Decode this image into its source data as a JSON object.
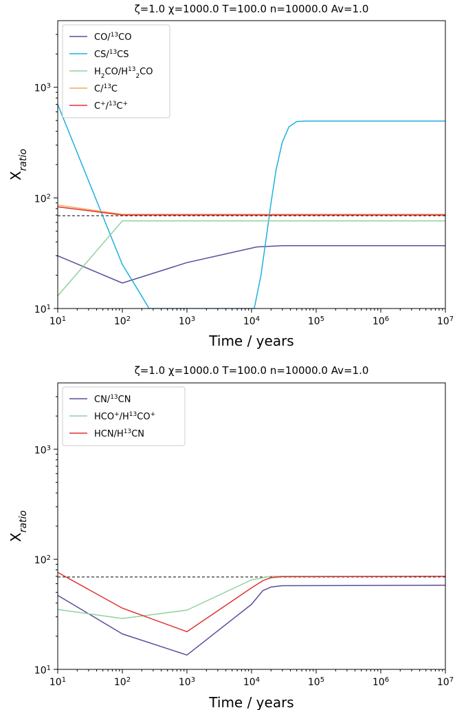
{
  "chart_data": [
    {
      "type": "line",
      "title": "ζ=1.0 χ=1000.0 T=100.0 n=10000.0  Av=1.0",
      "xlabel": "Time / years",
      "ylabel": "X_ratio",
      "xscale": "log",
      "yscale": "log",
      "xlim": [
        10,
        10000000
      ],
      "ylim": [
        10,
        4000
      ],
      "xticks": [
        {
          "base": "10",
          "exp": "1"
        },
        {
          "base": "10",
          "exp": "2"
        },
        {
          "base": "10",
          "exp": "3"
        },
        {
          "base": "10",
          "exp": "4"
        },
        {
          "base": "10",
          "exp": "5"
        },
        {
          "base": "10",
          "exp": "6"
        },
        {
          "base": "10",
          "exp": "7"
        }
      ],
      "yticks": [
        {
          "base": "10",
          "exp": "1"
        },
        {
          "base": "10",
          "exp": "2"
        },
        {
          "base": "10",
          "exp": "3"
        }
      ],
      "reference_line": {
        "y": 69,
        "style": "dashed",
        "color": "#222222"
      },
      "legend_position": "upper-left",
      "series": [
        {
          "name_parts": [
            [
              "CO/",
              ""
            ],
            [
              "13",
              "sup"
            ],
            [
              "CO",
              ""
            ]
          ],
          "color": "#5a4b9b",
          "points": [
            [
              10,
              30
            ],
            [
              100,
              17
            ],
            [
              1000,
              26
            ],
            [
              12000,
              36
            ],
            [
              30000,
              37
            ],
            [
              10000000,
              37
            ]
          ]
        },
        {
          "name_parts": [
            [
              "CS/",
              ""
            ],
            [
              "13",
              "sup"
            ],
            [
              "CS",
              ""
            ]
          ],
          "color": "#1ab0e0",
          "points": [
            [
              10,
              700
            ],
            [
              100,
              25
            ],
            [
              160,
              16
            ],
            [
              260,
              10
            ],
            [
              11000,
              10
            ],
            [
              14000,
              20
            ],
            [
              17000,
              45
            ],
            [
              20000,
              90
            ],
            [
              24000,
              180
            ],
            [
              30000,
              320
            ],
            [
              38000,
              440
            ],
            [
              50000,
              490
            ],
            [
              70000,
              495
            ],
            [
              10000000,
              495
            ]
          ]
        },
        {
          "name_parts": [
            [
              "H",
              ""
            ],
            [
              "2",
              "sub"
            ],
            [
              "CO/H",
              ""
            ],
            [
              "13",
              "sup"
            ],
            [
              "2",
              "sub"
            ],
            [
              "CO",
              ""
            ]
          ],
          "color": "#8fd19e",
          "points": [
            [
              10,
              13
            ],
            [
              100,
              62
            ],
            [
              10000000,
              62
            ]
          ]
        },
        {
          "name_parts": [
            [
              "C/",
              ""
            ],
            [
              "13",
              "sup"
            ],
            [
              "C",
              ""
            ]
          ],
          "color": "#f5a55a",
          "points": [
            [
              10,
              86
            ],
            [
              100,
              71
            ],
            [
              10000000,
              71
            ]
          ]
        },
        {
          "name_parts": [
            [
              "C",
              ""
            ],
            [
              "+",
              "sup"
            ],
            [
              "/",
              ""
            ],
            [
              "13",
              "sup"
            ],
            [
              "C",
              ""
            ],
            [
              "+",
              "sup"
            ]
          ],
          "color": "#e03030",
          "points": [
            [
              10,
              83
            ],
            [
              100,
              70
            ],
            [
              10000000,
              70
            ]
          ]
        }
      ]
    },
    {
      "type": "line",
      "title": "ζ=1.0 χ=1000.0 T=100.0 n=10000.0  Av=1.0",
      "xlabel": "Time / years",
      "ylabel": "X_ratio",
      "xscale": "log",
      "yscale": "log",
      "xlim": [
        10,
        10000000
      ],
      "ylim": [
        10,
        4000
      ],
      "xticks": [
        {
          "base": "10",
          "exp": "1"
        },
        {
          "base": "10",
          "exp": "2"
        },
        {
          "base": "10",
          "exp": "3"
        },
        {
          "base": "10",
          "exp": "4"
        },
        {
          "base": "10",
          "exp": "5"
        },
        {
          "base": "10",
          "exp": "6"
        },
        {
          "base": "10",
          "exp": "7"
        }
      ],
      "yticks": [
        {
          "base": "10",
          "exp": "1"
        },
        {
          "base": "10",
          "exp": "2"
        },
        {
          "base": "10",
          "exp": "3"
        }
      ],
      "reference_line": {
        "y": 69,
        "style": "dashed",
        "color": "#222222"
      },
      "legend_position": "upper-left",
      "series": [
        {
          "name_parts": [
            [
              "CN/",
              ""
            ],
            [
              "13",
              "sup"
            ],
            [
              "CN",
              ""
            ]
          ],
          "color": "#5a4b9b",
          "points": [
            [
              10,
              47
            ],
            [
              100,
              21
            ],
            [
              1000,
              13.5
            ],
            [
              10000,
              39
            ],
            [
              15000,
              52
            ],
            [
              20000,
              56
            ],
            [
              30000,
              57.5
            ],
            [
              10000000,
              58
            ]
          ]
        },
        {
          "name_parts": [
            [
              "HCO",
              ""
            ],
            [
              "+",
              "sup"
            ],
            [
              "/H",
              ""
            ],
            [
              "13",
              "sup"
            ],
            [
              "CO",
              ""
            ],
            [
              "+",
              "sup"
            ]
          ],
          "color": "#8fd19e",
          "points": [
            [
              10,
              35
            ],
            [
              100,
              29
            ],
            [
              1000,
              34.5
            ],
            [
              10000,
              65
            ],
            [
              20000,
              70
            ],
            [
              10000000,
              70
            ]
          ]
        },
        {
          "name_parts": [
            [
              "HCN/H",
              ""
            ],
            [
              "13",
              "sup"
            ],
            [
              "CN",
              ""
            ]
          ],
          "color": "#e03030",
          "points": [
            [
              10,
              76
            ],
            [
              100,
              36
            ],
            [
              1000,
              22
            ],
            [
              10000,
              55
            ],
            [
              15000,
              64
            ],
            [
              20000,
              68
            ],
            [
              30000,
              69.5
            ],
            [
              10000000,
              70
            ]
          ]
        }
      ]
    }
  ]
}
